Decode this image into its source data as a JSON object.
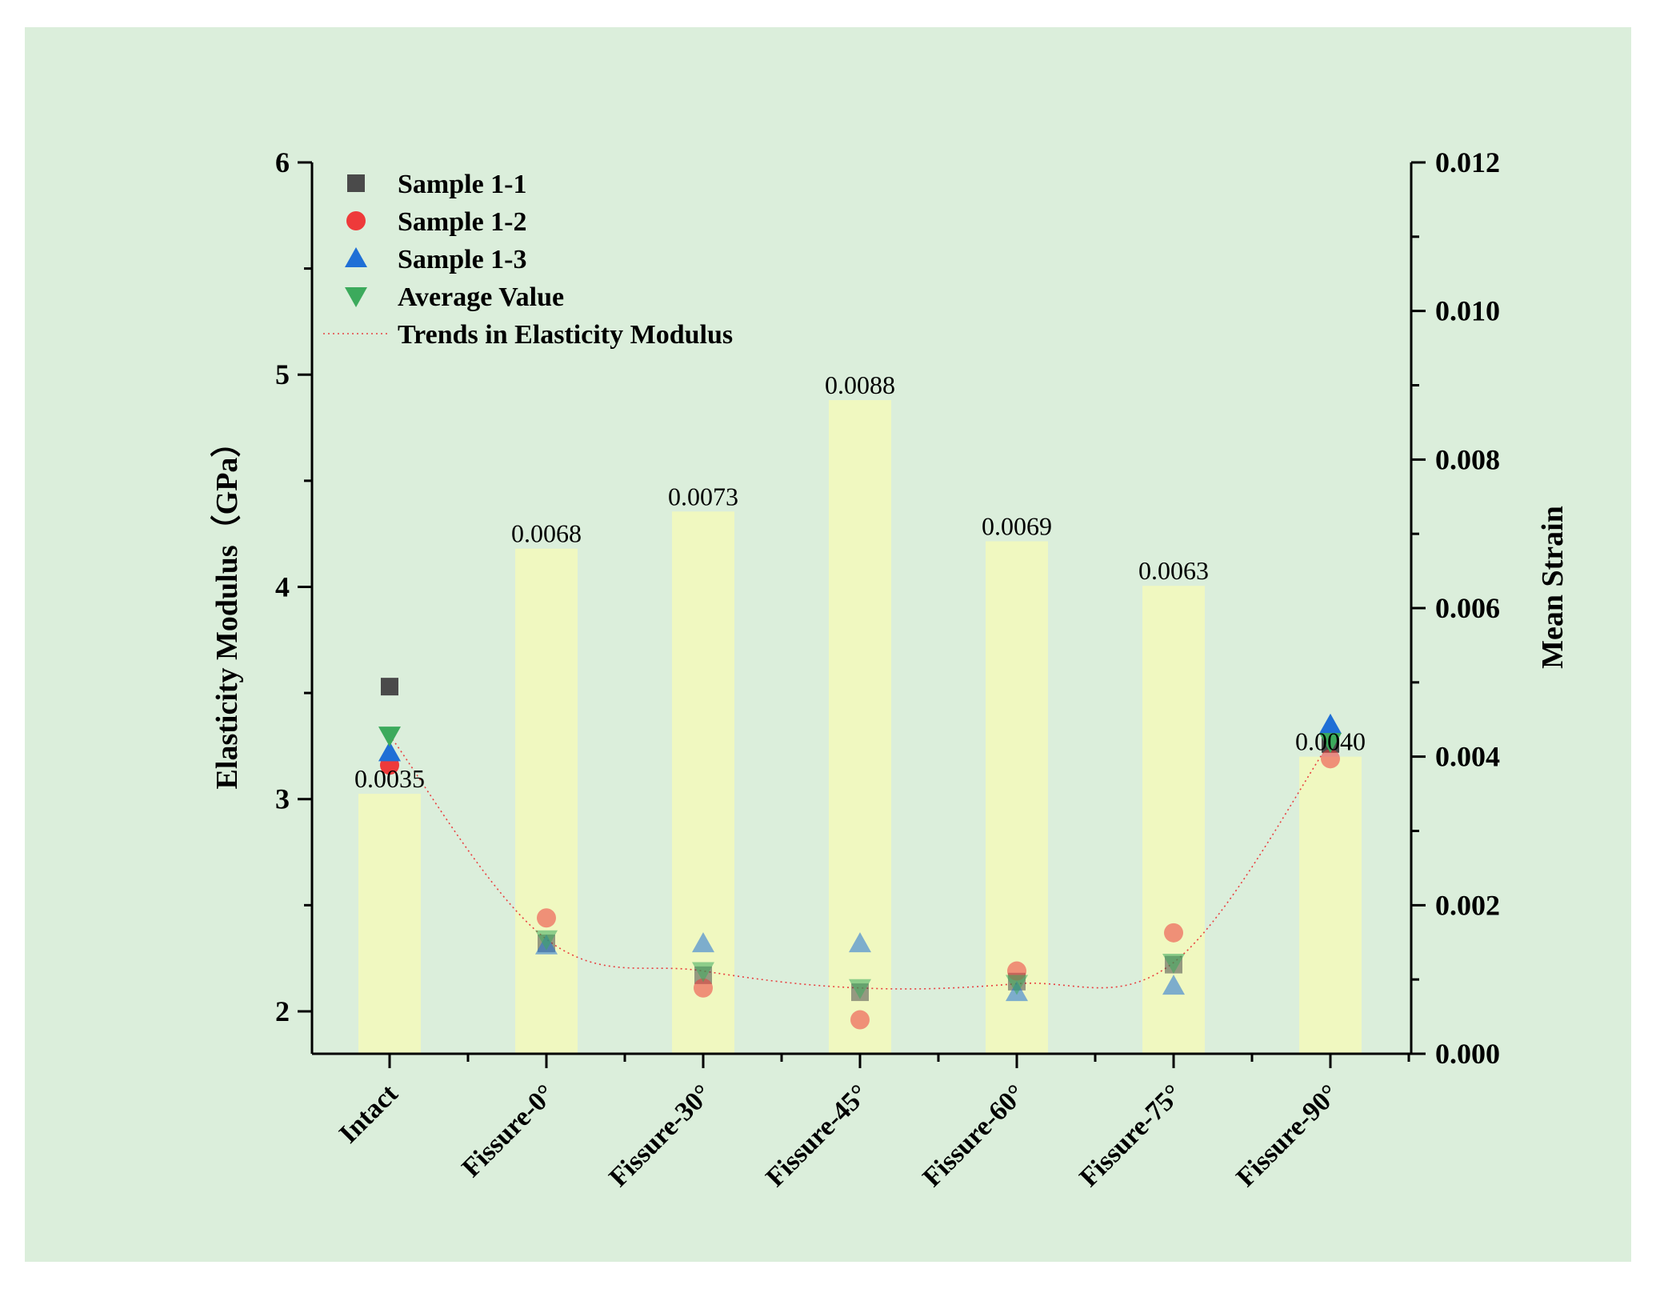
{
  "chart_data": {
    "type": "bar+scatter",
    "title": "",
    "xlabel": "",
    "ylabel": "Elasticity Modulus（GPa）",
    "y2label": "Mean Strain",
    "ylim": [
      1.8,
      6
    ],
    "y2lim": [
      0,
      0.012
    ],
    "yticks": [
      "2",
      "3",
      "4",
      "5",
      "6"
    ],
    "y2ticks": [
      "0.000",
      "0.002",
      "0.004",
      "0.006",
      "0.008",
      "0.010",
      "0.012"
    ],
    "categories": [
      "Intact",
      "Fissure-0°",
      "Fissure-30°",
      "Fissure-45°",
      "Fissure-60°",
      "Fissure-75°",
      "Fissure-90°"
    ],
    "bars": {
      "name": "Mean Strain",
      "axis": "right",
      "values": [
        0.0035,
        0.0068,
        0.0073,
        0.0088,
        0.0069,
        0.0063,
        0.004
      ],
      "labels": [
        "0.0035",
        "0.0068",
        "0.0073",
        "0.0088",
        "0.0069",
        "0.0063",
        "0.0040"
      ],
      "color": "#f0f8c0"
    },
    "series": [
      {
        "name": "Sample 1-1",
        "marker": "square",
        "color": "#4a4a4a",
        "values": [
          3.53,
          2.32,
          2.17,
          2.09,
          2.14,
          2.22,
          3.26
        ]
      },
      {
        "name": "Sample 1-2",
        "marker": "circle",
        "color": "#ee3a3a",
        "values": [
          3.16,
          2.44,
          2.11,
          1.96,
          2.19,
          2.37,
          3.19
        ]
      },
      {
        "name": "Sample 1-3",
        "marker": "triangle-up",
        "color": "#1f6fd6",
        "values": [
          3.22,
          2.31,
          2.32,
          2.32,
          2.09,
          2.12,
          3.35
        ]
      },
      {
        "name": "Average Value",
        "marker": "triangle-down",
        "color": "#3caa5c",
        "values": [
          3.3,
          2.34,
          2.19,
          2.11,
          2.13,
          2.23,
          3.27
        ]
      }
    ],
    "trend": {
      "name": "Trends in Elasticity Modulus",
      "style": "dotted",
      "color": "#e84040",
      "based_on": "Average Value"
    },
    "legend": "top-left"
  }
}
